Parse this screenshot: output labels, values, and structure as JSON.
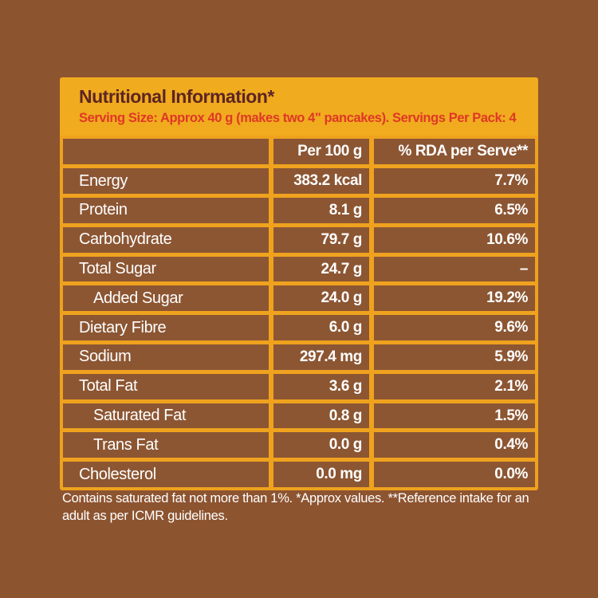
{
  "colors": {
    "bg_brown": "#8D5430",
    "cell_brown": "#8C5633",
    "accent_yellow": "#F0AB1E",
    "border_orange": "#EFA21E",
    "title_maroon": "#5D2523",
    "serving_red": "#DF3826",
    "text_white": "#FFFFFF"
  },
  "header": {
    "title": "Nutritional Information*",
    "serving_line": "Serving Size: Approx 40 g (makes two 4\" pancakes). Servings Per Pack: 4"
  },
  "table": {
    "columns": [
      "",
      "Per 100 g",
      "% RDA per Serve**"
    ],
    "rows": [
      {
        "label": "Energy",
        "indent": false,
        "per_100g": "383.2 kcal",
        "rda_per_serve": "7.7%"
      },
      {
        "label": "Protein",
        "indent": false,
        "per_100g": "8.1 g",
        "rda_per_serve": "6.5%"
      },
      {
        "label": "Carbohydrate",
        "indent": false,
        "per_100g": "79.7 g",
        "rda_per_serve": "10.6%"
      },
      {
        "label": "Total Sugar",
        "indent": false,
        "per_100g": "24.7 g",
        "rda_per_serve": "–"
      },
      {
        "label": "Added Sugar",
        "indent": true,
        "per_100g": "24.0 g",
        "rda_per_serve": "19.2%"
      },
      {
        "label": "Dietary Fibre",
        "indent": false,
        "per_100g": "6.0 g",
        "rda_per_serve": "9.6%"
      },
      {
        "label": "Sodium",
        "indent": false,
        "per_100g": "297.4 mg",
        "rda_per_serve": "5.9%"
      },
      {
        "label": "Total Fat",
        "indent": false,
        "per_100g": "3.6 g",
        "rda_per_serve": "2.1%"
      },
      {
        "label": "Saturated Fat",
        "indent": true,
        "per_100g": "0.8 g",
        "rda_per_serve": "1.5%"
      },
      {
        "label": "Trans Fat",
        "indent": true,
        "per_100g": "0.0 g",
        "rda_per_serve": "0.4%"
      },
      {
        "label": "Cholesterol",
        "indent": false,
        "per_100g": "0.0 mg",
        "rda_per_serve": "0.0%"
      }
    ]
  },
  "footnote": "Contains saturated fat not more than 1%. *Approx values. **Reference intake for an adult as per ICMR guidelines."
}
